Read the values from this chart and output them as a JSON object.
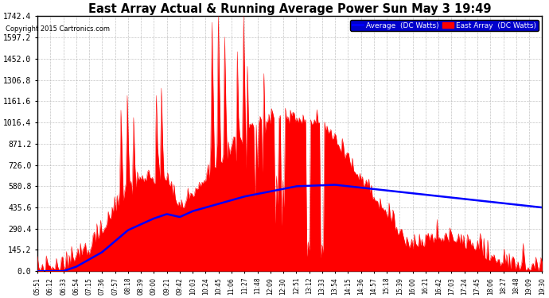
{
  "title": "East Array Actual & Running Average Power Sun May 3 19:49",
  "copyright": "Copyright 2015 Cartronics.com",
  "legend_labels": [
    "Average  (DC Watts)",
    "East Array  (DC Watts)"
  ],
  "legend_colors": [
    "#0000ff",
    "#ff0000"
  ],
  "y_max": 1742.4,
  "y_ticks": [
    0.0,
    145.2,
    290.4,
    435.6,
    580.8,
    726.0,
    871.2,
    1016.4,
    1161.6,
    1306.8,
    1452.0,
    1597.2,
    1742.4
  ],
  "background_color": "#ffffff",
  "plot_bg_color": "#ffffff",
  "grid_color": "#aaaaaa",
  "fill_color": "#ff0000",
  "line_color": "#0000ff",
  "x_labels": [
    "05:51",
    "06:12",
    "06:33",
    "06:54",
    "07:15",
    "07:36",
    "07:57",
    "08:18",
    "08:39",
    "09:00",
    "09:21",
    "09:42",
    "10:03",
    "10:24",
    "10:45",
    "11:06",
    "11:27",
    "11:48",
    "12:09",
    "12:30",
    "12:51",
    "13:12",
    "13:33",
    "13:54",
    "14:15",
    "14:36",
    "14:57",
    "15:18",
    "15:39",
    "16:00",
    "16:21",
    "16:42",
    "17:03",
    "17:24",
    "17:45",
    "18:06",
    "18:27",
    "18:48",
    "19:09",
    "19:30"
  ]
}
